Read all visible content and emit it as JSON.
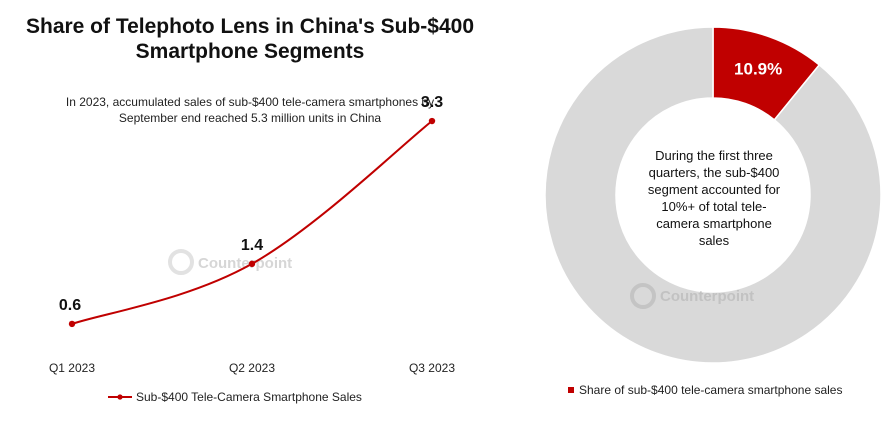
{
  "chart_data": [
    {
      "type": "line",
      "title": [
        "Share of Telephoto Lens in China's Sub-$400",
        "Smartphone Segments"
      ],
      "subtitle": [
        "In 2023, accumulated sales of sub-$400 tele-camera smartphones by",
        "September end reached 5.3 million units in China"
      ],
      "categories": [
        "Q1 2023",
        "Q2 2023",
        "Q3 2023"
      ],
      "series": [
        {
          "name": "Sub-$400 Tele-Camera Smartphone Sales",
          "values": [
            0.6,
            1.4,
            3.3
          ],
          "color": "#c00000"
        }
      ],
      "data_labels": [
        "0.6",
        "1.4",
        "3.3"
      ],
      "ylim": [
        0,
        3.5
      ],
      "grid": false,
      "legend": "bottom"
    },
    {
      "type": "pie",
      "donut": true,
      "slices": [
        {
          "name": "Share of sub-$400 tele-camera smartphone sales",
          "value": 10.9,
          "label": "10.9%",
          "color": "#c00000"
        },
        {
          "value": 89.1,
          "color": "#d9d9d9"
        }
      ],
      "center_text": [
        "During the first three",
        "quarters, the sub-$400",
        "segment accounted for",
        "10%+ of total tele-",
        "camera smartphone",
        "sales"
      ],
      "legend": "bottom"
    }
  ],
  "watermark": "Counterpoint",
  "colors": {
    "accent": "#c00000",
    "remainder": "#d9d9d9",
    "watermark": "#d6d6d6"
  }
}
